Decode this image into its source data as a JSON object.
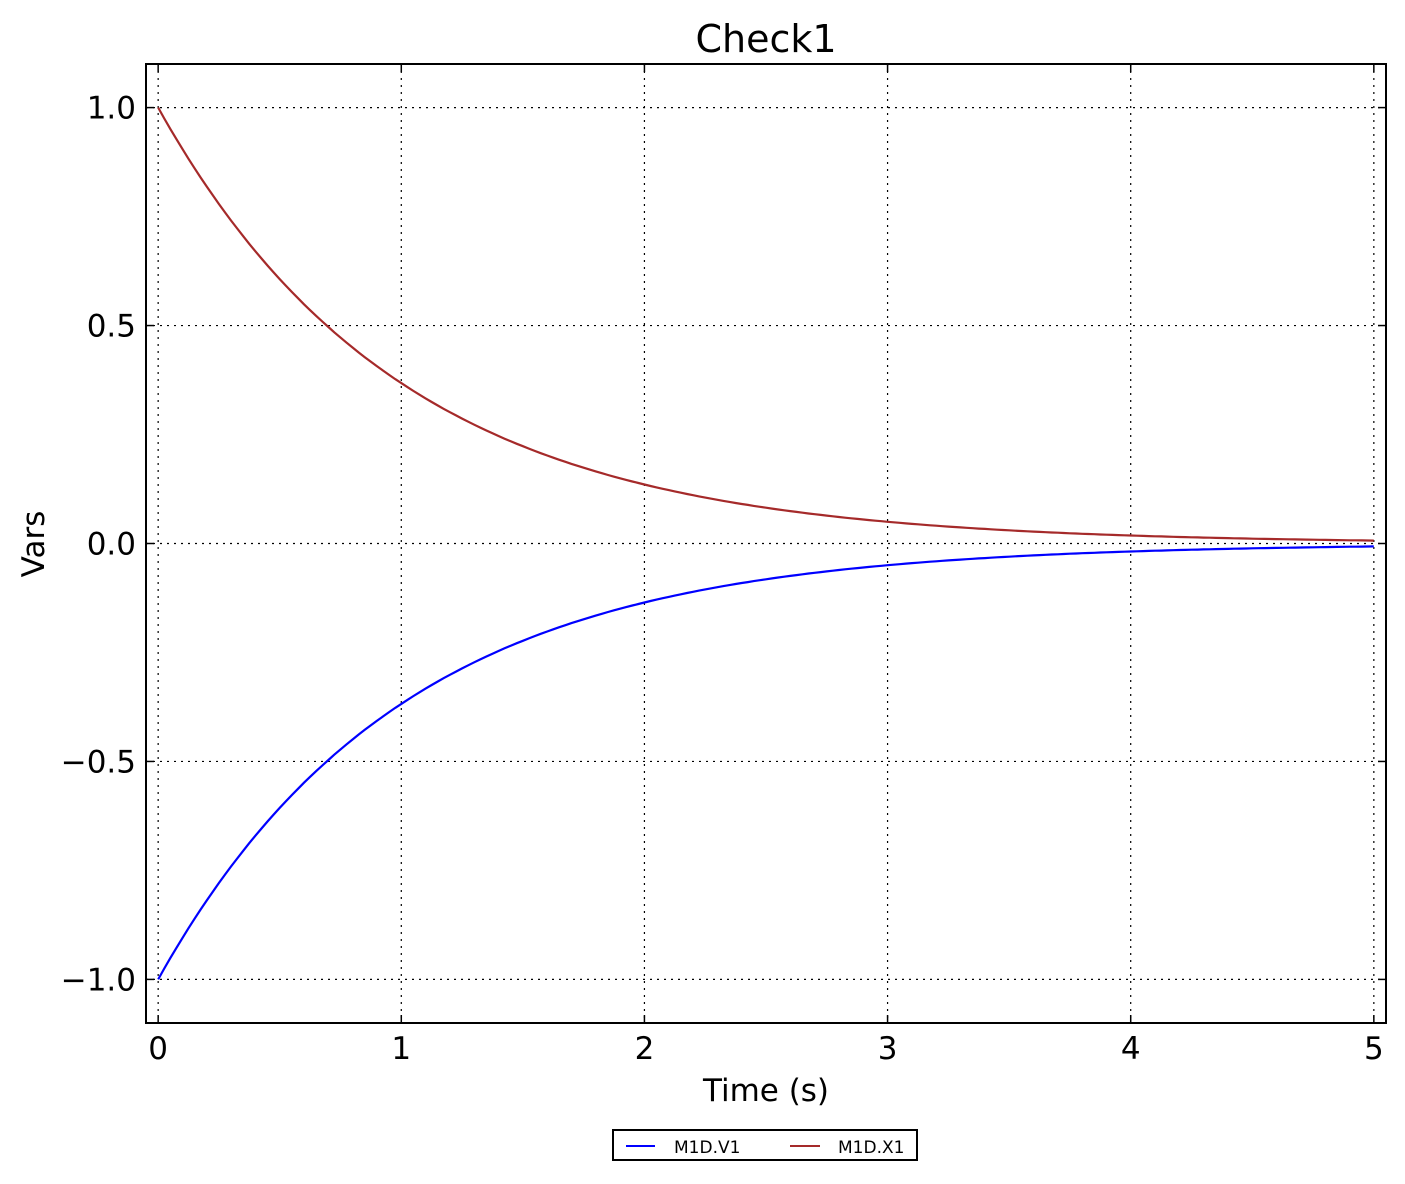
{
  "chart_data": {
    "type": "line",
    "title": "Check1",
    "xlabel": "Time (s)",
    "ylabel": "Vars",
    "xlim": [
      -0.05,
      5.05
    ],
    "ylim": [
      -1.1,
      1.1
    ],
    "xticks": [
      0,
      1,
      2,
      3,
      4,
      5
    ],
    "xtick_labels": [
      "0",
      "1",
      "2",
      "3",
      "4",
      "5"
    ],
    "yticks": [
      1.0,
      0.5,
      0.0,
      -0.5,
      -1.0
    ],
    "ytick_labels": [
      "1.0",
      "0.5",
      "0.0",
      "−0.5",
      "−1.0"
    ],
    "grid": true,
    "legend_position": "bottom-center-outside",
    "x": [
      0,
      0.25,
      0.5,
      0.75,
      1,
      1.25,
      1.5,
      1.75,
      2,
      2.25,
      2.5,
      2.75,
      3,
      3.25,
      3.5,
      3.75,
      4,
      4.25,
      4.5,
      4.75,
      5
    ],
    "series": [
      {
        "name": "M1D.V1",
        "color": "#0000ff",
        "values": [
          -1,
          -0.7788,
          -0.6065,
          -0.4724,
          -0.3679,
          -0.2865,
          -0.2231,
          -0.1738,
          -0.1353,
          -0.1054,
          -0.0821,
          -0.0639,
          -0.0498,
          -0.0388,
          -0.0302,
          -0.0235,
          -0.0183,
          -0.0143,
          -0.0111,
          -0.0087,
          -0.0067
        ]
      },
      {
        "name": "M1D.X1",
        "color": "#a52a2a",
        "values": [
          1,
          0.7788,
          0.6065,
          0.4724,
          0.3679,
          0.2865,
          0.2231,
          0.1738,
          0.1353,
          0.1054,
          0.0821,
          0.0639,
          0.0498,
          0.0388,
          0.0302,
          0.0235,
          0.0183,
          0.0143,
          0.0111,
          0.0087,
          0.0067
        ]
      }
    ]
  }
}
